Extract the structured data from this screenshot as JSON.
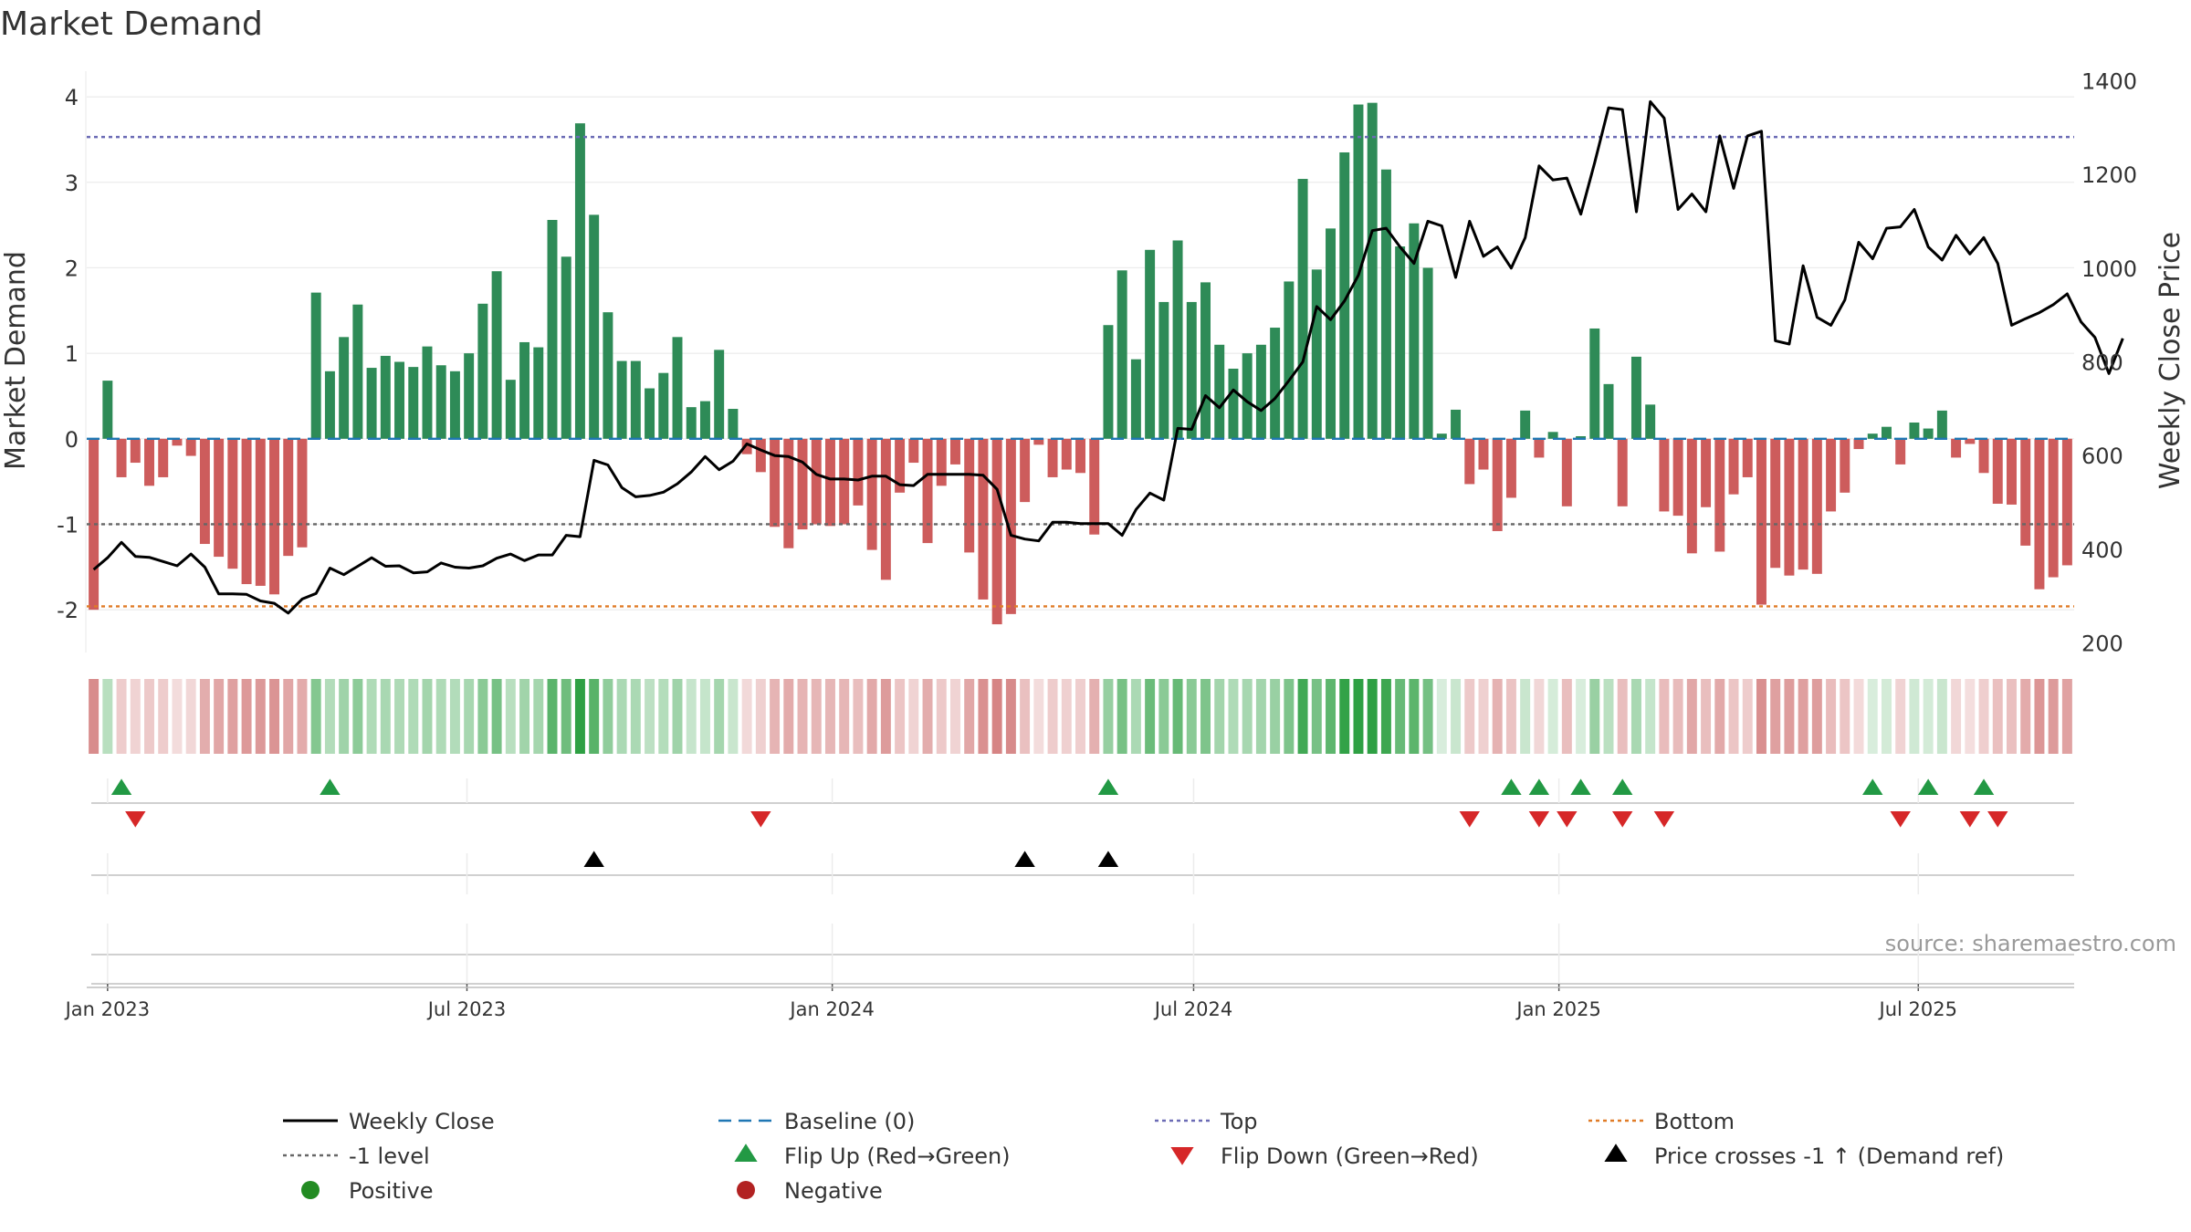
{
  "chart_data": {
    "type": "bar",
    "title": "Market Demand",
    "ylabel": "Market Demand",
    "y2label": "Weekly Close Price",
    "ylim": [
      -2.5,
      4.3
    ],
    "y2lim": [
      180,
      1420
    ],
    "yticks": [
      -2,
      -1,
      0,
      1,
      2,
      3,
      4
    ],
    "y2ticks": [
      200,
      400,
      600,
      800,
      1000,
      1200,
      1400
    ],
    "levels": {
      "top": 3.53,
      "minus_one": -1.0,
      "bottom": -1.96,
      "baseline": 0
    },
    "x_start": "2022-12-25",
    "x_step_days": 7,
    "x_ticks": [
      {
        "label": "Jan 2023",
        "date": "2023-01-01"
      },
      {
        "label": "Jul 2023",
        "date": "2023-07-01"
      },
      {
        "label": "Jan 2024",
        "date": "2024-01-01"
      },
      {
        "label": "Jul 2024",
        "date": "2024-07-01"
      },
      {
        "label": "Jan 2025",
        "date": "2025-01-01"
      },
      {
        "label": "Jul 2025",
        "date": "2025-07-01"
      }
    ],
    "demand": [
      -2.0,
      0.68,
      -0.45,
      -0.28,
      -0.55,
      -0.45,
      -0.08,
      -0.2,
      -1.23,
      -1.38,
      -1.52,
      -1.7,
      -1.72,
      -1.82,
      -1.37,
      -1.27,
      1.71,
      0.79,
      1.19,
      1.57,
      0.83,
      0.97,
      0.9,
      0.84,
      1.08,
      0.86,
      0.79,
      1.0,
      1.58,
      1.96,
      0.69,
      1.13,
      1.07,
      2.56,
      2.13,
      3.69,
      2.62,
      1.48,
      0.91,
      0.91,
      0.59,
      0.77,
      1.19,
      0.37,
      0.44,
      1.04,
      0.35,
      -0.18,
      -0.39,
      -1.03,
      -1.28,
      -1.06,
      -1.0,
      -1.02,
      -1.0,
      -0.78,
      -1.3,
      -1.65,
      -0.63,
      -0.28,
      -1.22,
      -0.55,
      -0.3,
      -1.33,
      -1.88,
      -2.17,
      -2.05,
      -0.74,
      -0.07,
      -0.45,
      -0.36,
      -0.4,
      -1.12,
      1.33,
      1.97,
      0.93,
      2.21,
      1.6,
      2.32,
      1.6,
      1.83,
      1.1,
      0.82,
      1.0,
      1.1,
      1.3,
      1.84,
      3.04,
      1.98,
      2.46,
      3.35,
      3.91,
      3.93,
      3.15,
      2.25,
      2.52,
      2.0,
      0.06,
      0.34,
      -0.53,
      -0.36,
      -1.08,
      -0.69,
      0.33,
      -0.22,
      0.08,
      -0.79,
      0.03,
      1.29,
      0.64,
      -0.79,
      0.96,
      0.4,
      -0.85,
      -0.9,
      -1.34,
      -0.8,
      -1.32,
      -0.65,
      -0.45,
      -1.94,
      -1.51,
      -1.6,
      -1.53,
      -1.58,
      -0.85,
      -0.63,
      -0.12,
      0.06,
      0.14,
      -0.3,
      0.19,
      0.12,
      0.33,
      -0.22,
      -0.06,
      -0.4,
      -0.76,
      -0.77,
      -1.25,
      -1.76,
      -1.62,
      -1.48
    ],
    "weekly_close": [
      357,
      382,
      415,
      385,
      383,
      374,
      365,
      390,
      362,
      305,
      305,
      304,
      290,
      285,
      264,
      294,
      306,
      360,
      346,
      364,
      382,
      364,
      365,
      350,
      352,
      371,
      362,
      360,
      365,
      381,
      390,
      376,
      388,
      388,
      430,
      427,
      590,
      580,
      532,
      512,
      515,
      522,
      540,
      565,
      598,
      570,
      588,
      625,
      612,
      600,
      598,
      586,
      560,
      550,
      550,
      548,
      556,
      556,
      538,
      536,
      560,
      560,
      560,
      560,
      558,
      528,
      430,
      422,
      418,
      458,
      458,
      455,
      455,
      455,
      430,
      485,
      520,
      505,
      658,
      656,
      728,
      702,
      740,
      715,
      696,
      722,
      760,
      800,
      918,
      890,
      930,
      985,
      1080,
      1085,
      1045,
      1010,
      1100,
      1090,
      980,
      1100,
      1025,
      1045,
      1000,
      1065,
      1218,
      1188,
      1192,
      1115,
      1225,
      1342,
      1338,
      1120,
      1355,
      1320,
      1125,
      1158,
      1120,
      1282,
      1170,
      1282,
      1292,
      845,
      838,
      1005,
      895,
      878,
      932,
      1055,
      1020,
      1085,
      1088,
      1125,
      1045,
      1017,
      1070,
      1030,
      1065,
      1010,
      878,
      892,
      905,
      922,
      945,
      885,
      852,
      775,
      850
    ],
    "flip_up": [
      2,
      17,
      73,
      102,
      104,
      107,
      110,
      128,
      132,
      136
    ],
    "flip_down": [
      3,
      48,
      99,
      104,
      106,
      110,
      113,
      130,
      135,
      137
    ],
    "price_cross": [
      36,
      67,
      73
    ]
  },
  "source": "source: sharemaestro.com",
  "colors": {
    "positive_bar": "#2e8b57",
    "negative_bar": "#cd5c5c",
    "flip_up": "#229944",
    "flip_down": "#d62728",
    "cross": "#000000",
    "top": "#6b6bb5",
    "bottom": "#e07b27",
    "baseline": "#1f77b4",
    "minus_one": "#666666",
    "positive_dot": "#228b22",
    "negative_dot": "#b22222"
  },
  "legend": [
    {
      "label": "Weekly Close",
      "kind": "line-solid",
      "color": "#000000"
    },
    {
      "label": "Baseline (0)",
      "kind": "line-dash",
      "color": "#1f77b4"
    },
    {
      "label": "Top",
      "kind": "line-dot",
      "color": "#6b6bb5"
    },
    {
      "label": "Bottom",
      "kind": "line-dot",
      "color": "#e07b27"
    },
    {
      "label": "-1 level",
      "kind": "line-dot",
      "color": "#666666"
    },
    {
      "label": "Flip Up (Red→Green)",
      "kind": "tri-up",
      "color": "#229944"
    },
    {
      "label": "Flip Down (Green→Red)",
      "kind": "tri-down",
      "color": "#d62728"
    },
    {
      "label": "Price crosses -1 ↑ (Demand ref)",
      "kind": "tri-up",
      "color": "#000000"
    },
    {
      "label": "Positive",
      "kind": "dot",
      "color": "#228b22"
    },
    {
      "label": "Negative",
      "kind": "dot",
      "color": "#b22222"
    }
  ]
}
